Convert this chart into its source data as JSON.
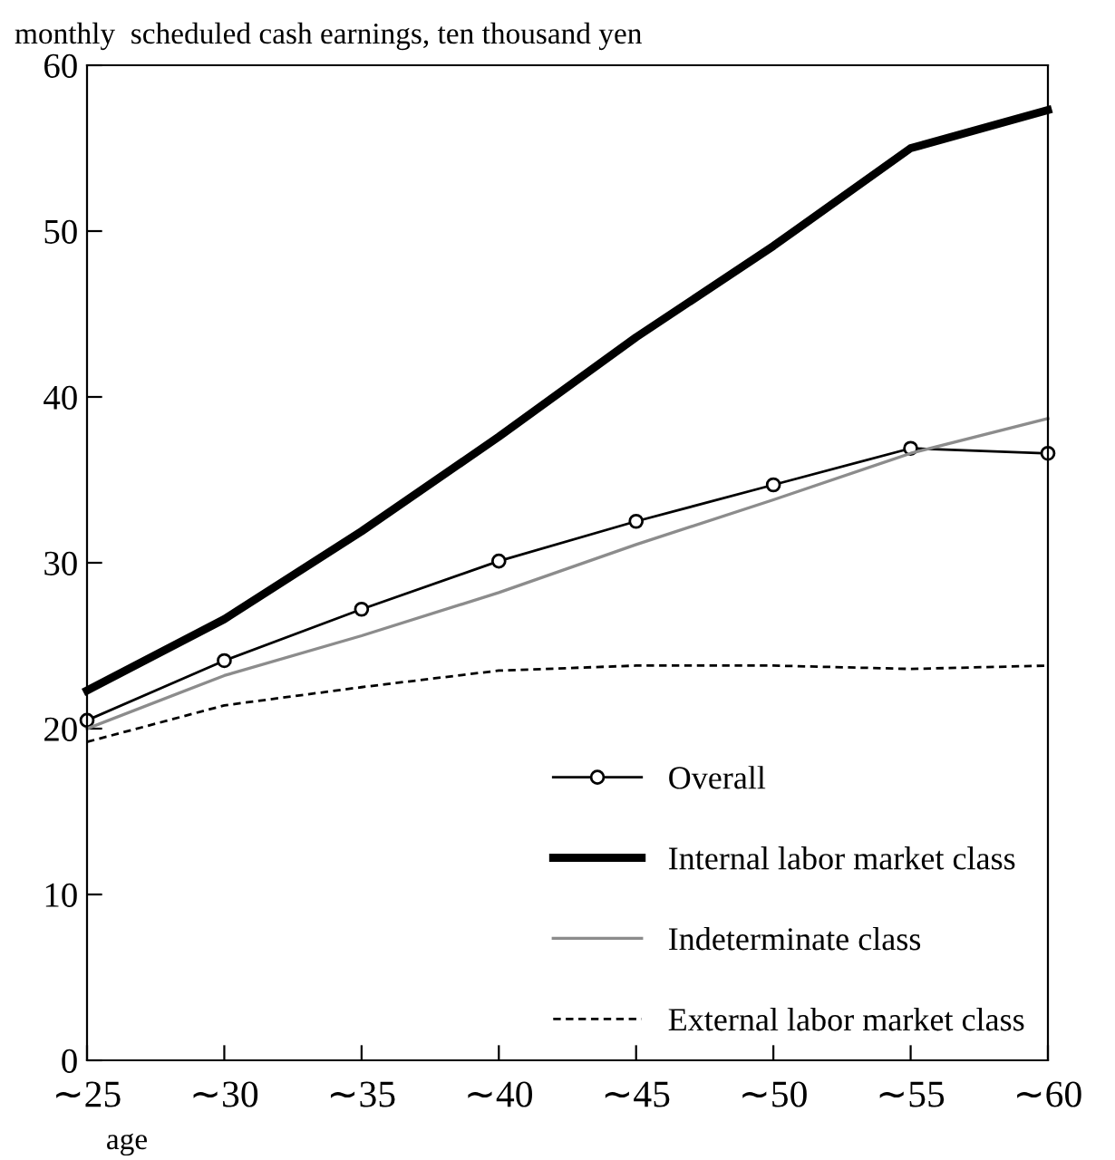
{
  "chart_data": {
    "type": "line",
    "ylabel": "monthly  scheduled cash earnings, ten thousand yen",
    "xlabel": "age",
    "categories": [
      "∼25",
      "∼30",
      "∼35",
      "∼40",
      "∼45",
      "∼50",
      "∼55",
      "∼60"
    ],
    "series": [
      {
        "name": "Overall",
        "color": "#000000",
        "marker": "circle",
        "line_style": "solid",
        "values": [
          20.5,
          24.1,
          27.2,
          30.1,
          32.5,
          34.7,
          36.9,
          36.6
        ]
      },
      {
        "name": "Internal labor market class",
        "color": "#000000",
        "marker": "none",
        "line_style": "solid",
        "values": [
          22.3,
          26.6,
          31.9,
          37.6,
          43.6,
          49.1,
          55.0,
          57.3
        ]
      },
      {
        "name": "Indeterminate class",
        "color": "#8c8c8c",
        "marker": "none",
        "line_style": "solid",
        "values": [
          20.0,
          23.2,
          25.6,
          28.2,
          31.1,
          33.8,
          36.6,
          38.7
        ]
      },
      {
        "name": "External labor market class",
        "color": "#000000",
        "marker": "none",
        "line_style": "dashed",
        "values": [
          19.2,
          21.4,
          22.5,
          23.5,
          23.8,
          23.8,
          23.6,
          23.8
        ]
      }
    ],
    "ylim": [
      0,
      60
    ],
    "yticks": [
      0,
      10,
      20,
      30,
      40,
      50,
      60
    ],
    "grid": false,
    "legend": "bottom right"
  }
}
